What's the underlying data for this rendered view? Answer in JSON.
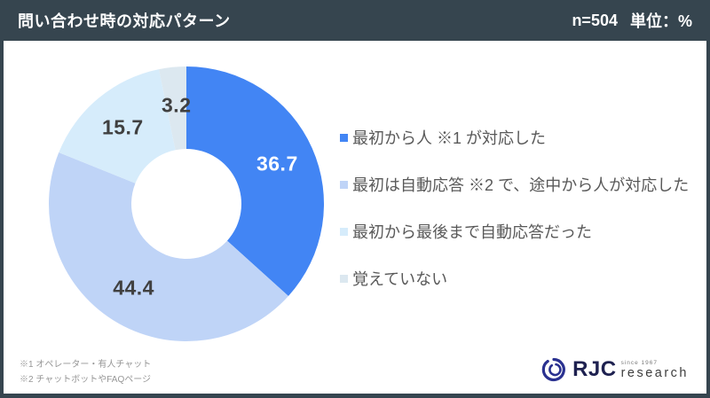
{
  "header": {
    "title": "問い合わせ時の対応パターン",
    "sample_size": "n=504",
    "unit": "単位：%"
  },
  "chart_data": {
    "type": "pie",
    "subtype": "donut",
    "title": "問い合わせ時の対応パターン",
    "unit": "%",
    "n": 504,
    "categories": [
      "最初から人 ※1 が対応した",
      "最初は自動応答 ※2 で、途中から人が対応した",
      "最初から最後まで自動応答だった",
      "覚えていない"
    ],
    "values": [
      36.7,
      44.4,
      15.7,
      3.2
    ],
    "colors": [
      "#4285F4",
      "#BFD4F7",
      "#D6ECFB",
      "#DCE8F0"
    ],
    "label_colors": [
      "#FFFFFF",
      "#404040",
      "#404040",
      "#404040"
    ],
    "start_angle_deg": 0,
    "direction": "clockwise",
    "inner_radius_ratio": 0.4,
    "legend_position": "right",
    "data_labels": "values-one-decimal"
  },
  "footnotes": [
    "※1 オペレーター・有人チャット",
    "※2 チャットボットやFAQページ"
  ],
  "logo": {
    "text_main": "RJC",
    "text_tagline": "since 1967",
    "text_sub": "research"
  },
  "colors": {
    "frame": "#36454F",
    "header_bg": "#36454F",
    "background": "#FFFFFF",
    "legend_text": "#595959",
    "footnote_text": "#969696",
    "logo_navy": "#2A3190"
  }
}
